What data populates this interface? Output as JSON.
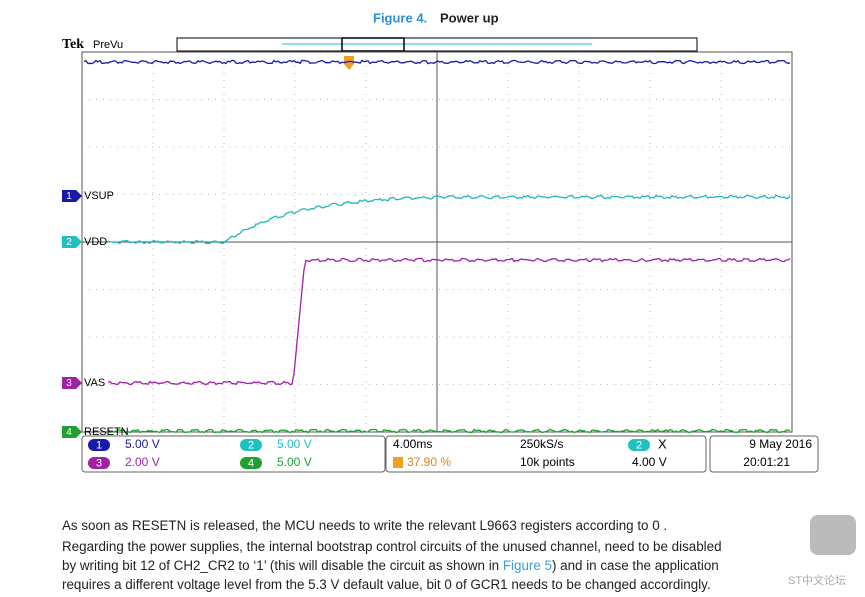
{
  "caption": {
    "label": "Figure 4.",
    "title": "Power up"
  },
  "scope": {
    "brand": "Tek",
    "mode": "PreVu",
    "channels": [
      {
        "number": "1",
        "name": "VSUP"
      },
      {
        "number": "2",
        "name": "VDD"
      },
      {
        "number": "3",
        "name": "VAS"
      },
      {
        "number": "4",
        "name": "RESETN"
      }
    ],
    "settings": [
      {
        "channel": "1",
        "scale": "5.00 V"
      },
      {
        "channel": "3",
        "scale": "2.00 V"
      },
      {
        "channel": "2",
        "scale": "5.00 V"
      },
      {
        "channel": "4",
        "scale": "5.00 V"
      }
    ],
    "timebase": "4.00ms",
    "trigger_position": "37.90 %",
    "sample_rate": "250kS/s",
    "record_length": "10k points",
    "trigger_source": "2",
    "trigger_slope": "X",
    "trigger_level": "4.00 V",
    "date": "9 May 2016",
    "time": "20:01:21"
  },
  "body": {
    "paragraph1": "As soon as RESETN is released, the MCU needs to write the relevant L9663 registers according to 0 .",
    "paragraph2": {
      "line1": "Regarding the power supplies, the internal bootstrap control circuits of the unused channel, need to be disabled",
      "line2_before": "by writing bit 12 of CH2_CR2 to ‘1’ (this will disable the circuit as shown in ",
      "link": "Figure 5",
      "line2_after": ") and in case the application",
      "line3": "requires a different voltage level from the 5.3 V default value, bit 0 of GCR1 needs to be changed accordingly."
    }
  },
  "watermark": "ST中文论坛"
}
